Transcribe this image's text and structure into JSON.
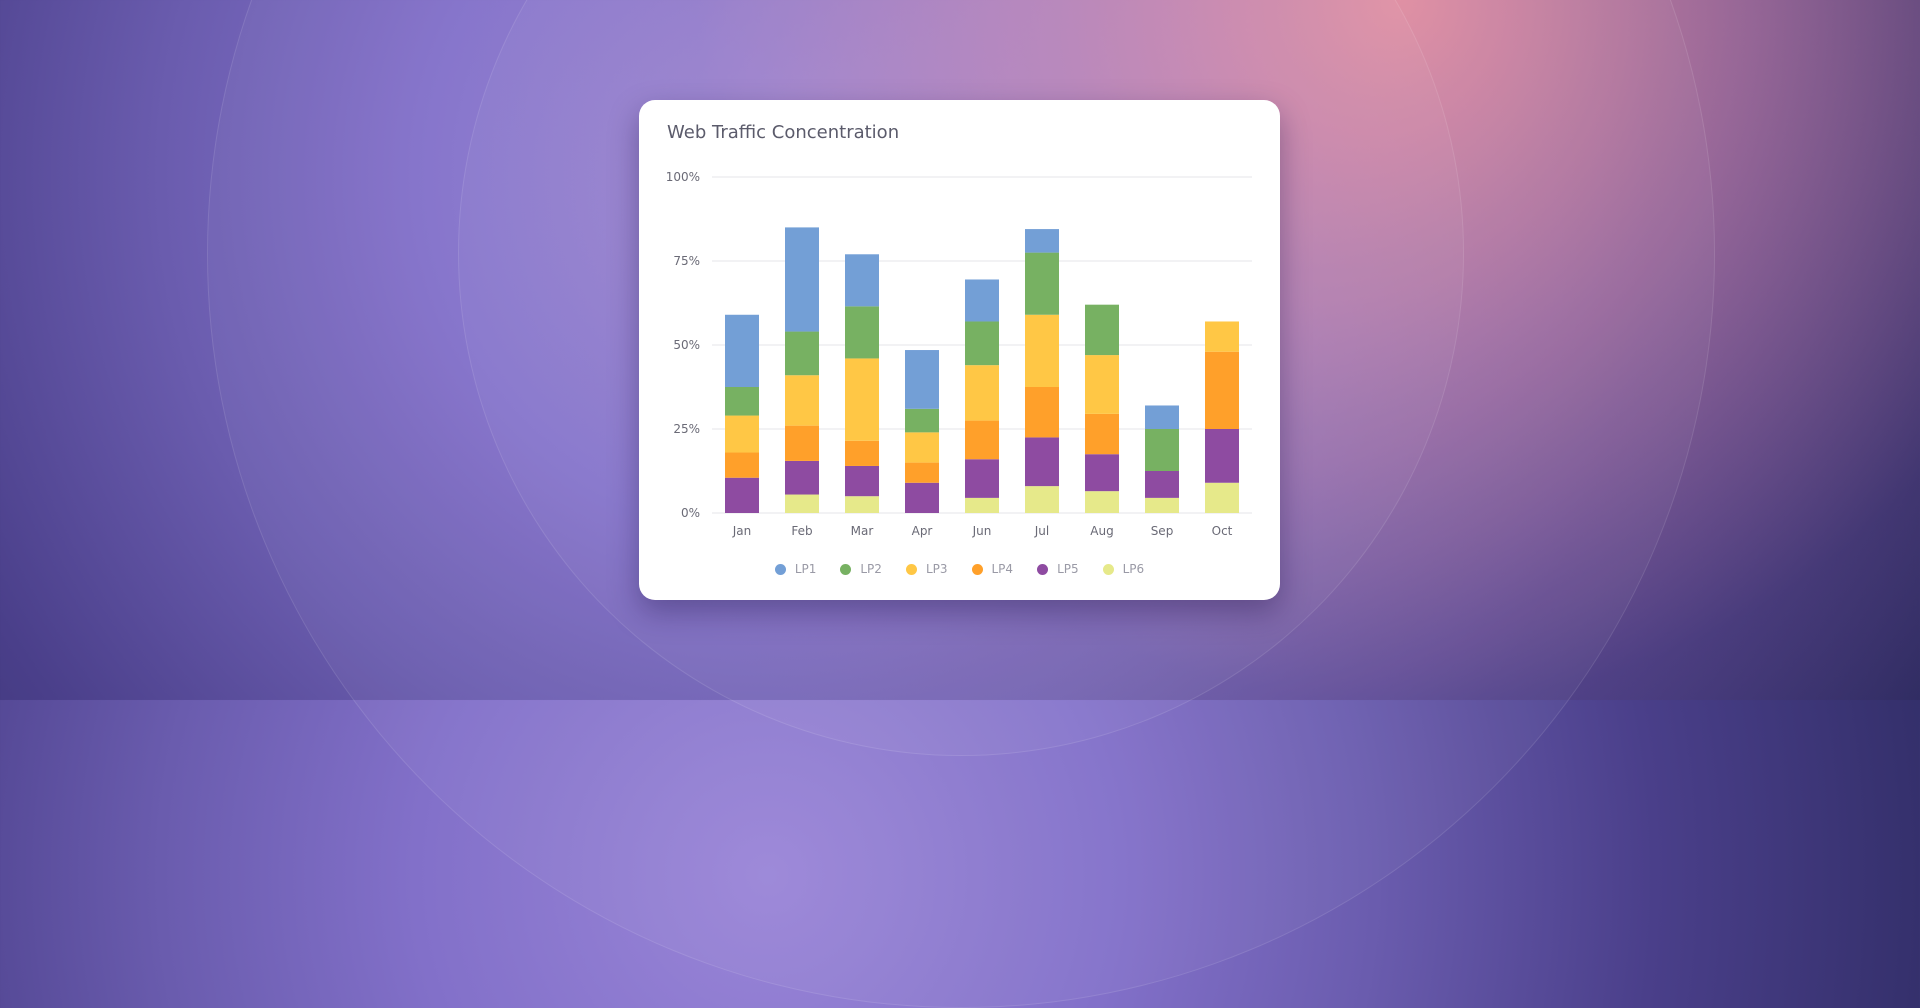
{
  "chart_data": {
    "type": "bar",
    "stacked": true,
    "title": "Web Traffic Concentration",
    "xlabel": "",
    "ylabel": "",
    "ylim": [
      0,
      100
    ],
    "yticks": [
      "0%",
      "25%",
      "50%",
      "75%",
      "100%"
    ],
    "ytick_values": [
      0,
      25,
      50,
      75,
      100
    ],
    "grid": true,
    "legend_position": "bottom",
    "categories": [
      "Jan",
      "Feb",
      "Mar",
      "Apr",
      "Jun",
      "Jul",
      "Aug",
      "Sep",
      "Oct"
    ],
    "series": [
      {
        "name": "LP6",
        "color": "#e6e98a",
        "values": [
          0,
          5.5,
          5,
          0,
          4.5,
          8,
          6.5,
          4.5,
          9
        ]
      },
      {
        "name": "LP5",
        "color": "#8e4ba1",
        "values": [
          10.5,
          10,
          9,
          9,
          11.5,
          14.5,
          11,
          8,
          16
        ]
      },
      {
        "name": "LP4",
        "color": "#ffa02a",
        "values": [
          7.5,
          10.5,
          7.5,
          6,
          11.5,
          15,
          12,
          0,
          23
        ]
      },
      {
        "name": "LP3",
        "color": "#ffc745",
        "values": [
          11,
          15,
          24.5,
          9,
          16.5,
          21.5,
          17.5,
          0,
          9
        ]
      },
      {
        "name": "LP2",
        "color": "#77b162",
        "values": [
          8.5,
          13,
          15.5,
          7,
          13,
          18.5,
          15,
          12.5,
          0
        ]
      },
      {
        "name": "LP1",
        "color": "#739fd6",
        "values": [
          21.5,
          31,
          15.5,
          17.5,
          12.5,
          7,
          0,
          7,
          0
        ]
      }
    ],
    "legend_order": [
      "LP1",
      "LP2",
      "LP3",
      "LP4",
      "LP5",
      "LP6"
    ]
  }
}
